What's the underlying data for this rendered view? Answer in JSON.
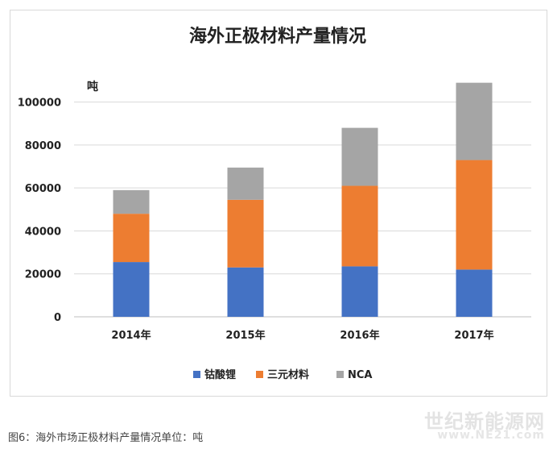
{
  "caption": "图6：海外市场正极材料产量情况单位：吨",
  "watermark": {
    "line1": "世纪新能源网",
    "line2": "www.NE21.com"
  },
  "colors": {
    "钴酸锂": "#4472c4",
    "三元材料": "#ed7d31",
    "NCA": "#a5a5a5"
  },
  "chart_data": {
    "type": "bar",
    "stacked": true,
    "title": "海外正极材料产量情况",
    "ylabel": "吨",
    "xlabel": "",
    "ylim": [
      0,
      110000
    ],
    "yticks": [
      0,
      20000,
      40000,
      60000,
      80000,
      100000
    ],
    "ytick_labels": [
      "0",
      "20000",
      "40000",
      "60000",
      "80000",
      "100000"
    ],
    "grid": true,
    "legend_position": "bottom",
    "categories": [
      "2014年",
      "2015年",
      "2016年",
      "2017年"
    ],
    "series": [
      {
        "name": "钴酸锂",
        "values": [
          25500,
          23000,
          23500,
          22000
        ]
      },
      {
        "name": "三元材料",
        "values": [
          22500,
          31500,
          37500,
          51000
        ]
      },
      {
        "name": "NCA",
        "values": [
          11000,
          15000,
          27000,
          36000
        ]
      }
    ]
  }
}
